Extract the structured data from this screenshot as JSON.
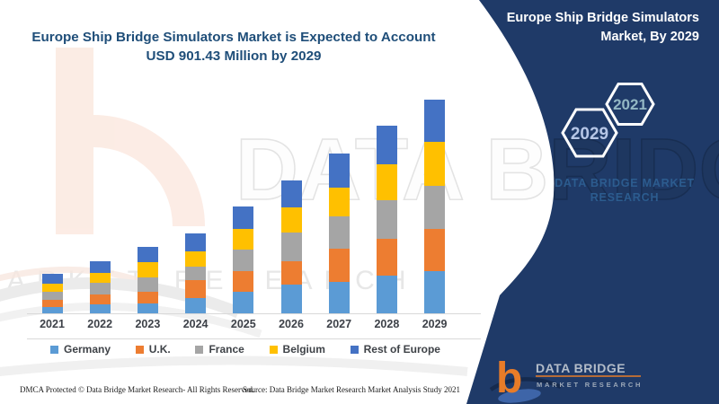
{
  "title": {
    "line1": "Europe Ship Bridge Simulators Market is Expected to Account",
    "line2": "USD 901.43 Million by 2029"
  },
  "panel": {
    "bg_color": "#1f3a68",
    "title_line1": "Europe Ship Bridge Simulators",
    "title_line2": "Market, By 2029",
    "hex_left_label": "2029",
    "hex_right_label": "2021",
    "brand_line1": "DATA BRIDGE MARKET",
    "brand_line2": "RESEARCH"
  },
  "logo": {
    "b_glyph": "b",
    "wordmark": "DATA BRIDGE",
    "subtext": "MARKET RESEARCH",
    "accent_color": "#e87c28"
  },
  "watermarks": {
    "big_text": "DATA BRIDGE",
    "band_text": "MARKET RESEARCH"
  },
  "footer": {
    "dmca": "DMCA Protected © Data Bridge Market Research- All Rights Reserved.",
    "source": "Source: Data Bridge Market Research Market Analysis Study 2021"
  },
  "chart_data": {
    "type": "bar",
    "stacked": true,
    "title": "Europe Ship Bridge Simulators Market is Expected to Account USD 901.43 Million by 2029",
    "unit": "USD Million",
    "xlabel": "",
    "ylabel": "",
    "y_axis_visible": false,
    "grid": false,
    "legend_position": "bottom",
    "ylim": [
      0,
      950
    ],
    "categories": [
      "2021",
      "2022",
      "2023",
      "2024",
      "2025",
      "2026",
      "2027",
      "2028",
      "2029"
    ],
    "series": [
      {
        "name": "Germany",
        "color": "#5B9BD5",
        "values": [
          30,
          40,
          46,
          67,
          94,
          125,
          136,
          163,
          180
        ]
      },
      {
        "name": "U.K.",
        "color": "#ED7D31",
        "values": [
          30,
          42,
          49,
          75,
          87,
          98,
          141,
          155,
          180
        ]
      },
      {
        "name": "France",
        "color": "#A5A5A5",
        "values": [
          34,
          50,
          60,
          57,
          91,
          122,
          133,
          163,
          180
        ]
      },
      {
        "name": "Belgium",
        "color": "#FFC000",
        "values": [
          36,
          43,
          65,
          66,
          87,
          106,
          122,
          151,
          185
        ]
      },
      {
        "name": "Rest of Europe",
        "color": "#4472C4",
        "values": [
          38,
          48,
          65,
          73,
          92,
          112,
          143,
          159,
          176.43
        ]
      }
    ],
    "totals_by_year": [
      168,
      223,
      285,
      338,
      451,
      563,
      675,
      791,
      901.43
    ],
    "highlight_value": "USD 901.43 Million by 2029"
  }
}
